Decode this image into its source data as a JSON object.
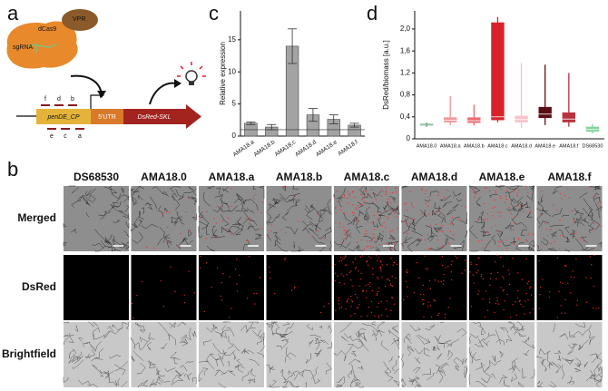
{
  "panel_labels": [
    "a",
    "b",
    "c",
    "d"
  ],
  "diagram": {
    "dcas9": "dCas9",
    "vpr": "VPR",
    "sgrna": "sgRNA",
    "targets_top": [
      "f",
      "d",
      "b"
    ],
    "targets_bottom": [
      "e",
      "c",
      "a"
    ],
    "promoter": "penDE_CP",
    "utr": "5'UTR",
    "reporter": "DsRed-SKL"
  },
  "chart_data": [
    {
      "type": "bar",
      "y_label": "Relative expression",
      "categories": [
        "AMA18.a",
        "AMA18.b",
        "AMA18.c",
        "AMA18.d",
        "AMA18.e",
        "AMA18.f"
      ],
      "values": [
        2.0,
        1.4,
        14.0,
        3.3,
        2.6,
        1.7
      ],
      "errors": [
        0.2,
        0.4,
        2.7,
        1.0,
        0.7,
        0.3
      ],
      "color": "#a3a3a3",
      "ylim": [
        0,
        19.5
      ],
      "yticks": [
        0,
        5,
        10,
        15
      ],
      "reference_line": 1
    },
    {
      "type": "box",
      "y_label": "DsRed/biomass [a.u.]",
      "categories": [
        "AMA18.0",
        "AMA18.a",
        "AMA18.b",
        "AMA18.c",
        "AMA18.d",
        "AMA18.e",
        "AMA18.f",
        "DS68530"
      ],
      "colors": [
        "#2e7d4f",
        "#f29595",
        "#e96b6e",
        "#d9222a",
        "#f6c3c8",
        "#5a0e14",
        "#b8333c",
        "#7fd49a"
      ],
      "min": [
        0.22,
        0.25,
        0.24,
        0.3,
        0.2,
        0.25,
        0.22,
        0.1
      ],
      "q1": [
        0.24,
        0.3,
        0.29,
        0.34,
        0.3,
        0.38,
        0.3,
        0.13
      ],
      "median": [
        0.25,
        0.34,
        0.33,
        0.4,
        0.35,
        0.45,
        0.36,
        0.17
      ],
      "q3": [
        0.27,
        0.39,
        0.39,
        2.12,
        0.42,
        0.58,
        0.48,
        0.22
      ],
      "max": [
        0.29,
        0.78,
        0.62,
        2.22,
        1.38,
        1.35,
        1.2,
        0.27
      ],
      "ylim": [
        0,
        2.33
      ],
      "yticks": [
        0,
        {
          "value": 0.4,
          "label": "0,4"
        },
        {
          "value": 0.8,
          "label": "0,8"
        },
        {
          "value": 1.2,
          "label": "1,2"
        },
        {
          "value": 1.6,
          "label": "1,6"
        },
        {
          "value": 2.0,
          "label": "2,0"
        }
      ]
    }
  ],
  "micrographs": {
    "columns": [
      "DS68530",
      "AMA18.0",
      "AMA18.a",
      "AMA18.b",
      "AMA18.c",
      "AMA18.d",
      "AMA18.e",
      "AMA18.f"
    ],
    "rows": [
      "Merged",
      "DsRed",
      "Brightfield"
    ]
  }
}
